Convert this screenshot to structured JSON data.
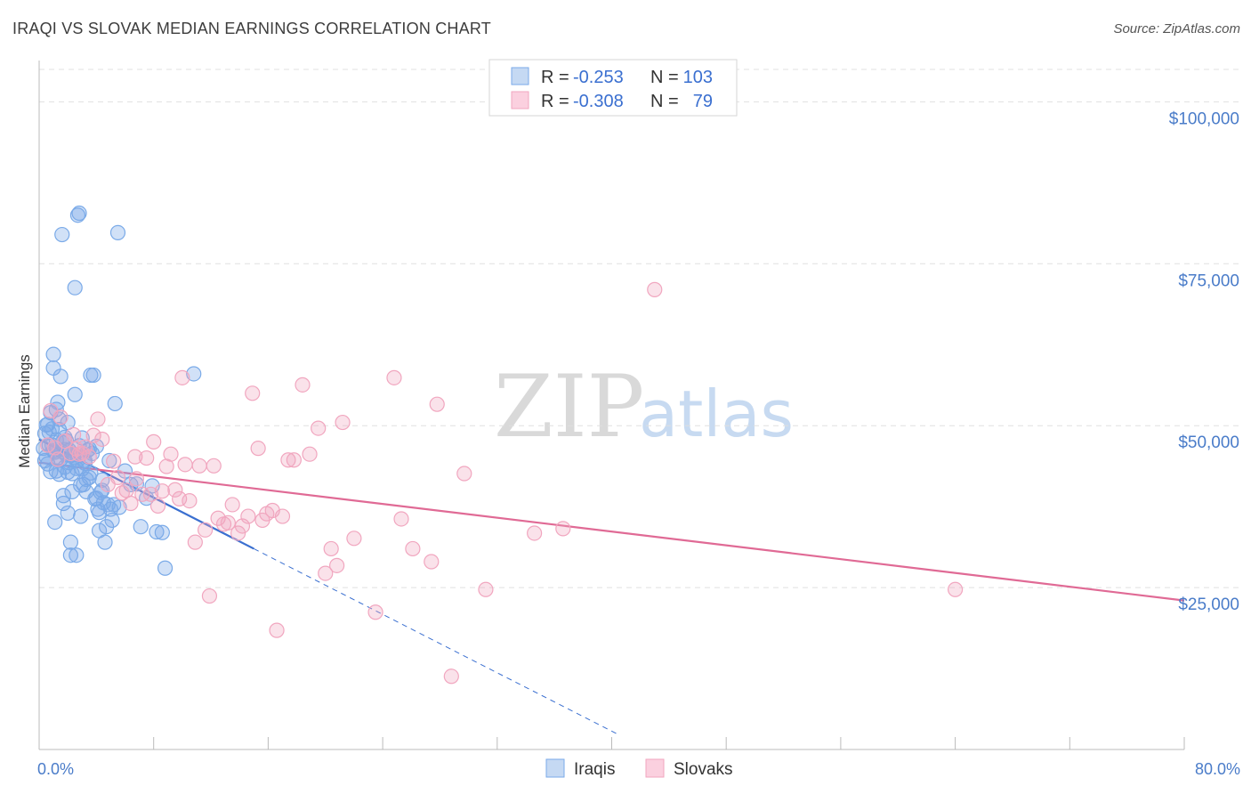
{
  "header": {
    "title": "IRAQI VS SLOVAK MEDIAN EARNINGS CORRELATION CHART",
    "source": "Source: ZipAtlas.com"
  },
  "watermark": {
    "zip": "ZIP",
    "atlas": "atlas"
  },
  "chart_data": {
    "type": "scatter",
    "title": "IRAQI VS SLOVAK MEDIAN EARNINGS CORRELATION CHART",
    "ylabel": "Median Earnings",
    "xlabel": "",
    "xlim": [
      0,
      80
    ],
    "ylim": [
      0,
      105000
    ],
    "x_tick_labels": [
      {
        "value": 0,
        "label": "0.0%"
      },
      {
        "value": 80,
        "label": "80.0%"
      }
    ],
    "y_tick_labels": [
      {
        "value": 25000,
        "label": "$25,000"
      },
      {
        "value": 50000,
        "label": "$50,000"
      },
      {
        "value": 75000,
        "label": "$75,000"
      },
      {
        "value": 100000,
        "label": "$100,000"
      }
    ],
    "grid": true,
    "stats": [
      {
        "r_label": "R =",
        "r_value": "-0.253",
        "n_label": "N =",
        "n_value": "103"
      },
      {
        "r_label": "R =",
        "r_value": "-0.308",
        "n_label": "N =",
        "n_value": "79"
      }
    ],
    "series": [
      {
        "name": "Iraqis",
        "color": "#7aaae8",
        "line_color": "#3a6fd0",
        "trend": {
          "x0": 0,
          "y0": 47900,
          "x1": 15,
          "y1": 31000,
          "dash_to_x": 40.5
        },
        "points": [
          [
            0.3,
            46500
          ],
          [
            0.4,
            48800
          ],
          [
            0.5,
            45200
          ],
          [
            0.6,
            50200
          ],
          [
            0.6,
            44100
          ],
          [
            0.7,
            47000
          ],
          [
            0.8,
            52000
          ],
          [
            0.8,
            42900
          ],
          [
            0.9,
            49500
          ],
          [
            1.0,
            46100
          ],
          [
            1.0,
            58900
          ],
          [
            1.0,
            61000
          ],
          [
            1.1,
            35100
          ],
          [
            1.2,
            43000
          ],
          [
            1.2,
            47800
          ],
          [
            1.3,
            53600
          ],
          [
            1.3,
            45000
          ],
          [
            1.4,
            51000
          ],
          [
            1.4,
            49400
          ],
          [
            1.5,
            57600
          ],
          [
            1.5,
            44800
          ],
          [
            1.6,
            46000
          ],
          [
            1.6,
            79500
          ],
          [
            1.7,
            38000
          ],
          [
            1.7,
            39200
          ],
          [
            1.8,
            46300
          ],
          [
            1.8,
            48200
          ],
          [
            1.9,
            47700
          ],
          [
            2.0,
            36500
          ],
          [
            2.0,
            42800
          ],
          [
            2.0,
            50500
          ],
          [
            2.1,
            44300
          ],
          [
            2.2,
            32000
          ],
          [
            2.2,
            30000
          ],
          [
            2.3,
            42600
          ],
          [
            2.4,
            45600
          ],
          [
            2.5,
            54800
          ],
          [
            2.5,
            71300
          ],
          [
            2.6,
            30000
          ],
          [
            2.6,
            43400
          ],
          [
            2.7,
            82500
          ],
          [
            2.8,
            82800
          ],
          [
            2.8,
            46900
          ],
          [
            2.9,
            36000
          ],
          [
            3.0,
            48100
          ],
          [
            3.0,
            43300
          ],
          [
            3.1,
            40900
          ],
          [
            3.2,
            44600
          ],
          [
            3.3,
            39800
          ],
          [
            3.4,
            46200
          ],
          [
            3.5,
            46400
          ],
          [
            3.5,
            42000
          ],
          [
            3.6,
            57800
          ],
          [
            3.6,
            42700
          ],
          [
            3.7,
            45700
          ],
          [
            3.8,
            57800
          ],
          [
            3.9,
            38700
          ],
          [
            4.0,
            46800
          ],
          [
            4.0,
            38800
          ],
          [
            4.1,
            37100
          ],
          [
            4.2,
            36600
          ],
          [
            4.2,
            33800
          ],
          [
            4.3,
            39700
          ],
          [
            4.4,
            40000
          ],
          [
            4.5,
            38100
          ],
          [
            4.6,
            32000
          ],
          [
            4.7,
            34400
          ],
          [
            4.8,
            37800
          ],
          [
            4.9,
            44600
          ],
          [
            5.0,
            37100
          ],
          [
            5.1,
            35400
          ],
          [
            5.2,
            37800
          ],
          [
            5.3,
            53400
          ],
          [
            5.5,
            79800
          ],
          [
            5.6,
            37400
          ],
          [
            6.0,
            43000
          ],
          [
            6.4,
            40900
          ],
          [
            6.8,
            41000
          ],
          [
            7.1,
            34400
          ],
          [
            7.5,
            38800
          ],
          [
            7.9,
            40700
          ],
          [
            8.2,
            33600
          ],
          [
            8.6,
            33500
          ],
          [
            8.8,
            28000
          ],
          [
            10.8,
            58000
          ],
          [
            0.5,
            50100
          ],
          [
            0.9,
            47000
          ],
          [
            1.1,
            45900
          ],
          [
            1.4,
            42500
          ],
          [
            1.9,
            45500
          ],
          [
            2.3,
            39800
          ],
          [
            2.9,
            40800
          ],
          [
            3.2,
            44200
          ],
          [
            0.7,
            49000
          ],
          [
            1.6,
            47400
          ],
          [
            2.1,
            46200
          ],
          [
            2.7,
            44700
          ],
          [
            3.3,
            41700
          ],
          [
            4.4,
            41600
          ],
          [
            1.2,
            52500
          ],
          [
            0.4,
            44600
          ],
          [
            1.8,
            43600
          ],
          [
            2.4,
            45100
          ]
        ]
      },
      {
        "name": "Slovaks",
        "color": "#f1a6bf",
        "line_color": "#e06a95",
        "trend": {
          "x0": 0,
          "y0": 44300,
          "x1": 80,
          "y1": 23000
        },
        "points": [
          [
            0.6,
            47000
          ],
          [
            0.8,
            52300
          ],
          [
            1.1,
            46600
          ],
          [
            1.3,
            44800
          ],
          [
            1.5,
            51300
          ],
          [
            1.8,
            47600
          ],
          [
            2.2,
            45700
          ],
          [
            2.4,
            48600
          ],
          [
            2.6,
            46400
          ],
          [
            3.0,
            45700
          ],
          [
            3.2,
            46700
          ],
          [
            3.5,
            45200
          ],
          [
            3.8,
            48500
          ],
          [
            4.1,
            51000
          ],
          [
            4.4,
            47900
          ],
          [
            4.8,
            40900
          ],
          [
            5.2,
            44500
          ],
          [
            5.5,
            42000
          ],
          [
            5.8,
            39600
          ],
          [
            6.1,
            40000
          ],
          [
            6.4,
            38000
          ],
          [
            6.8,
            41800
          ],
          [
            7.2,
            39400
          ],
          [
            7.5,
            45000
          ],
          [
            7.8,
            39400
          ],
          [
            8.0,
            47500
          ],
          [
            8.3,
            37600
          ],
          [
            8.6,
            39900
          ],
          [
            8.9,
            43700
          ],
          [
            9.2,
            45600
          ],
          [
            9.5,
            40100
          ],
          [
            9.8,
            38700
          ],
          [
            10.2,
            44000
          ],
          [
            10.5,
            38400
          ],
          [
            10.9,
            32000
          ],
          [
            11.2,
            43800
          ],
          [
            11.6,
            33900
          ],
          [
            11.9,
            23700
          ],
          [
            12.2,
            43800
          ],
          [
            12.5,
            35700
          ],
          [
            12.9,
            34800
          ],
          [
            13.2,
            35000
          ],
          [
            13.5,
            37800
          ],
          [
            13.9,
            33400
          ],
          [
            14.2,
            34500
          ],
          [
            14.6,
            36000
          ],
          [
            14.9,
            55000
          ],
          [
            15.3,
            46500
          ],
          [
            15.6,
            35400
          ],
          [
            15.9,
            36400
          ],
          [
            16.3,
            36900
          ],
          [
            16.6,
            18400
          ],
          [
            17.0,
            36000
          ],
          [
            17.4,
            44700
          ],
          [
            17.8,
            44700
          ],
          [
            18.4,
            56300
          ],
          [
            18.9,
            45600
          ],
          [
            19.5,
            49600
          ],
          [
            20.0,
            27200
          ],
          [
            20.4,
            31000
          ],
          [
            20.8,
            28400
          ],
          [
            21.2,
            50500
          ],
          [
            22.0,
            32600
          ],
          [
            23.5,
            21200
          ],
          [
            24.8,
            57400
          ],
          [
            25.3,
            35600
          ],
          [
            26.1,
            31000
          ],
          [
            27.4,
            29000
          ],
          [
            27.8,
            53300
          ],
          [
            28.8,
            11300
          ],
          [
            29.7,
            42600
          ],
          [
            31.2,
            24700
          ],
          [
            34.6,
            33400
          ],
          [
            36.6,
            34100
          ],
          [
            43.0,
            71000
          ],
          [
            64.0,
            24700
          ],
          [
            10.0,
            57400
          ],
          [
            2.8,
            45600
          ],
          [
            6.7,
            45200
          ]
        ]
      }
    ]
  }
}
